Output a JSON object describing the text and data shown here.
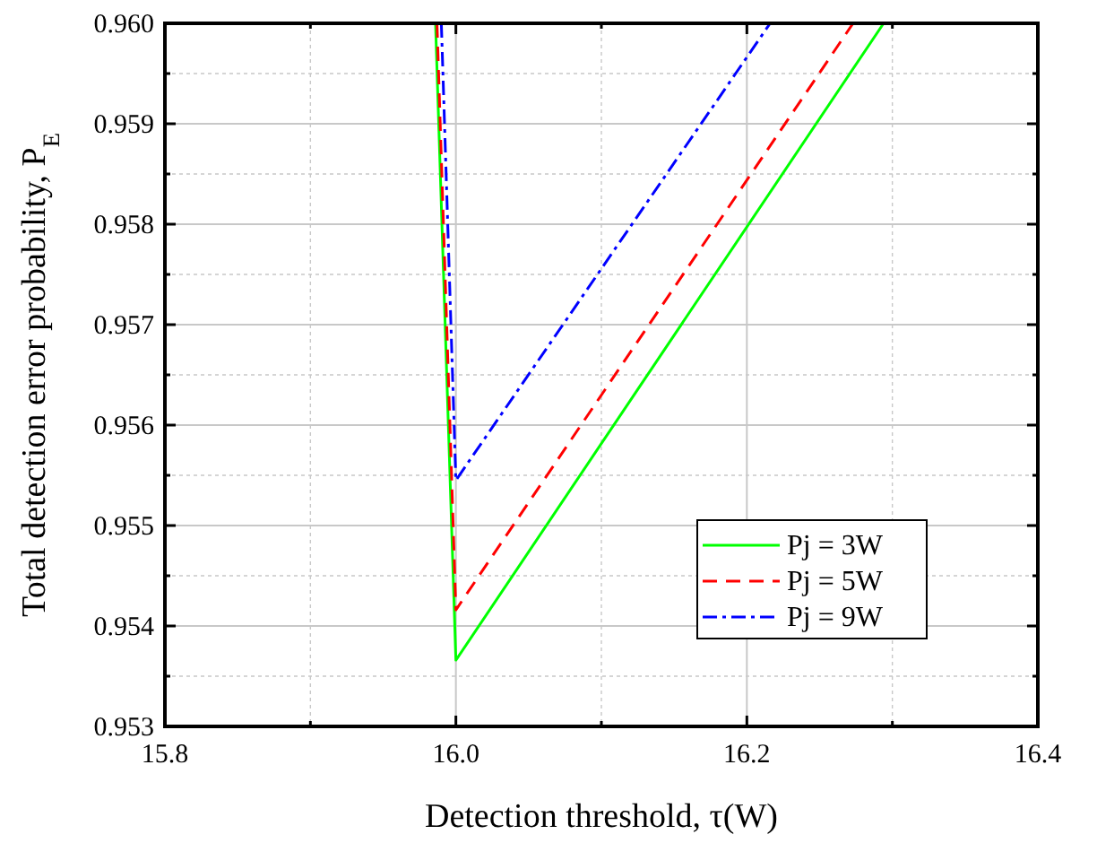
{
  "chart_data": {
    "type": "line",
    "xlabel": "Detection threshold, τ(W)",
    "ylabel": "Total detection error probability, P$_{E}$",
    "xlim": [
      15.8,
      16.4
    ],
    "ylim": [
      0.953,
      0.96
    ],
    "xticks": [
      15.8,
      {
        "value": 15.9,
        "label": null
      },
      {
        "value": 16,
        "label": "16.0"
      },
      {
        "value": 16.1,
        "label": null
      },
      16.2,
      {
        "value": 16.3,
        "label": null
      },
      16.4
    ],
    "yticks": [
      0.953,
      {
        "value": 0.9535,
        "label": null
      },
      0.954,
      {
        "value": 0.9545,
        "label": null
      },
      0.955,
      {
        "value": 0.9555,
        "label": null
      },
      0.956,
      {
        "value": 0.9565,
        "label": null
      },
      0.957,
      {
        "value": 0.9575,
        "label": null
      },
      0.958,
      {
        "value": 0.9585,
        "label": null
      },
      0.959,
      {
        "value": 0.9595,
        "label": null
      },
      {
        "value": 0.96,
        "label": "0.960"
      }
    ],
    "grid": true,
    "legend": "bottom right",
    "marker": "none",
    "series": [
      {
        "name": "Pj = 3W",
        "color": "#00ff00",
        "line_style": "solid",
        "x": [
          15.986,
          16.0,
          16.294
        ],
        "values": [
          0.96,
          0.95366,
          0.96
        ]
      },
      {
        "name": "Pj = 5W",
        "color": "#ff0000",
        "line_style": "dashed",
        "x": [
          15.987,
          16.0,
          16.273
        ],
        "values": [
          0.96,
          0.95416,
          0.96
        ]
      },
      {
        "name": "Pj = 9W",
        "color": "#0000ff",
        "line_style": "dashdot",
        "x": [
          15.99,
          16.0,
          16.216
        ],
        "values": [
          0.96,
          0.95545,
          0.96
        ]
      }
    ]
  }
}
